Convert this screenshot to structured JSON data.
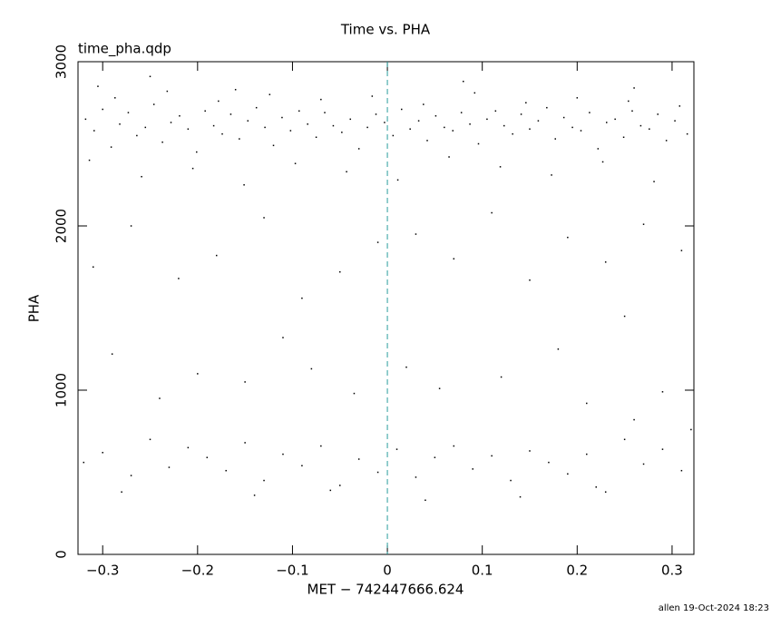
{
  "chart_data": {
    "type": "scatter",
    "title": "Time vs. PHA",
    "subtitle": "time_pha.qdp",
    "x_label": "MET − 742447666.624",
    "y_label": "PHA",
    "footer": "allen 19-Oct-2024 18:23",
    "color": "#000000",
    "vline": 0,
    "vline_color": "#2a9d9d",
    "xlim": [
      -0.326,
      0.323
    ],
    "ylim": [
      0,
      3000
    ],
    "xticks": [
      {
        "value": -0.3,
        "label": "−0.3"
      },
      {
        "value": -0.2,
        "label": "−0.2"
      },
      {
        "value": -0.1,
        "label": "−0.1"
      },
      0,
      0.1,
      0.2,
      0.3
    ],
    "yticks": [
      0,
      1000,
      2000,
      3000
    ],
    "x": [
      -0.318,
      -0.309,
      -0.3,
      -0.291,
      -0.282,
      -0.273,
      -0.264,
      -0.255,
      -0.246,
      -0.237,
      -0.228,
      -0.219,
      -0.21,
      -0.201,
      -0.192,
      -0.183,
      -0.174,
      -0.165,
      -0.156,
      -0.147,
      -0.138,
      -0.129,
      -0.12,
      -0.111,
      -0.102,
      -0.093,
      -0.084,
      -0.075,
      -0.066,
      -0.057,
      -0.048,
      -0.039,
      -0.03,
      -0.021,
      -0.012,
      -0.003,
      0.006,
      0.015,
      0.024,
      0.033,
      0.042,
      0.051,
      0.06,
      0.069,
      0.078,
      0.087,
      0.096,
      0.105,
      0.114,
      0.123,
      0.132,
      0.141,
      0.15,
      0.159,
      0.168,
      0.177,
      0.186,
      0.195,
      0.204,
      0.213,
      0.222,
      0.231,
      0.24,
      0.249,
      0.258,
      0.267,
      0.276,
      0.285,
      0.294,
      0.303,
      -0.314,
      -0.287,
      -0.259,
      -0.232,
      -0.205,
      -0.178,
      -0.151,
      -0.124,
      -0.097,
      -0.07,
      -0.043,
      -0.016,
      0.011,
      0.038,
      0.065,
      0.092,
      0.119,
      0.146,
      0.173,
      0.2,
      0.227,
      0.254,
      0.281,
      0.308,
      0.316,
      -0.305,
      -0.25,
      -0.16,
      0.08,
      0.26,
      -0.31,
      -0.27,
      -0.22,
      -0.18,
      -0.13,
      -0.09,
      -0.05,
      -0.01,
      0.03,
      0.07,
      0.11,
      0.15,
      0.19,
      0.23,
      0.27,
      0.31,
      -0.29,
      -0.2,
      0.02,
      0.18,
      -0.24,
      -0.15,
      -0.08,
      -0.035,
      0.055,
      0.12,
      0.21,
      0.29,
      -0.11,
      0.25,
      -0.32,
      -0.3,
      -0.27,
      -0.25,
      -0.23,
      -0.21,
      -0.19,
      -0.17,
      -0.15,
      -0.13,
      -0.11,
      -0.09,
      -0.07,
      -0.05,
      -0.03,
      -0.01,
      0.01,
      0.03,
      0.05,
      0.07,
      0.09,
      0.11,
      0.13,
      0.15,
      0.17,
      0.19,
      0.21,
      0.23,
      0.25,
      0.27,
      0.29,
      0.31,
      -0.28,
      -0.14,
      0.04,
      0.14,
      0.26,
      -0.06,
      0.22,
      0.32
    ],
    "values": [
      2650,
      2580,
      2710,
      2480,
      2620,
      2690,
      2550,
      2600,
      2740,
      2510,
      2630,
      2670,
      2590,
      2450,
      2700,
      2610,
      2560,
      2680,
      2530,
      2640,
      2720,
      2600,
      2490,
      2660,
      2580,
      2700,
      2620,
      2540,
      2690,
      2610,
      2570,
      2650,
      2470,
      2600,
      2680,
      2630,
      2550,
      2710,
      2590,
      2640,
      2520,
      2670,
      2600,
      2580,
      2690,
      2620,
      2500,
      2650,
      2700,
      2610,
      2560,
      2680,
      2590,
      2640,
      2720,
      2530,
      2660,
      2600,
      2580,
      2690,
      2470,
      2630,
      2650,
      2540,
      2700,
      2610,
      2590,
      2680,
      2520,
      2640,
      2400,
      2780,
      2300,
      2820,
      2350,
      2760,
      2250,
      2800,
      2380,
      2770,
      2330,
      2790,
      2280,
      2740,
      2420,
      2810,
      2360,
      2750,
      2310,
      2780,
      2390,
      2760,
      2270,
      2730,
      2560,
      2850,
      2910,
      2830,
      2880,
      2840,
      1750,
      2000,
      1680,
      1820,
      2050,
      1560,
      1720,
      1900,
      1950,
      1800,
      2080,
      1670,
      1930,
      1780,
      2010,
      1850,
      1220,
      1100,
      1140,
      1250,
      950,
      1050,
      1130,
      980,
      1010,
      1080,
      920,
      990,
      1320,
      1450,
      560,
      620,
      480,
      700,
      530,
      650,
      590,
      510,
      680,
      450,
      610,
      540,
      660,
      420,
      580,
      500,
      640,
      470,
      590,
      660,
      520,
      600,
      450,
      630,
      560,
      490,
      610,
      380,
      700,
      550,
      640,
      510,
      380,
      360,
      330,
      350,
      820,
      390,
      410,
      760
    ]
  }
}
